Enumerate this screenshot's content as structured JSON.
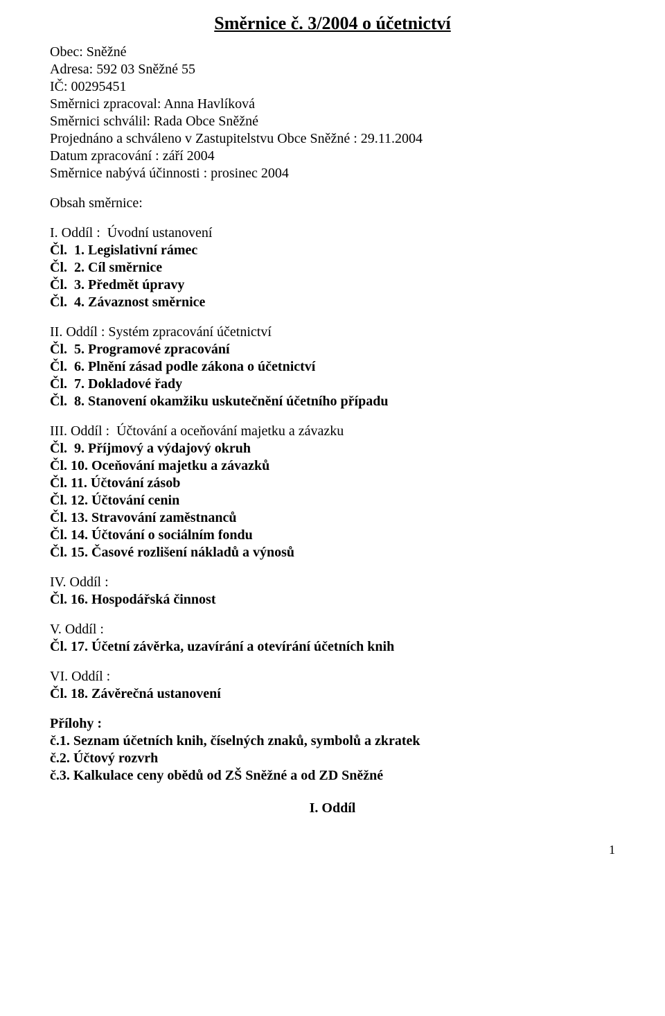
{
  "title": "Směrnice č. 3/2004 o účetnictví",
  "header": {
    "obec": "Obec: Sněžné",
    "adresa": "Adresa: 592 03 Sněžné 55",
    "ic": "IČ: 00295451",
    "zpracoval": "Směrnici zpracoval: Anna Havlíková",
    "schvalil": "Směrnici schválil: Rada Obce Sněžné",
    "projednano": "Projednáno a schváleno v Zastupitelstvu Obce Sněžné : 29.11.2004",
    "datum_zprac": "Datum zpracování : září 2004",
    "ucinnost": "Směrnice nabývá účinnosti : prosinec 2004"
  },
  "obsah_heading": "Obsah směrnice:",
  "section1": {
    "title": "I. Oddíl :  Úvodní ustanovení",
    "items": [
      "Čl.  1. Legislativní rámec",
      "Čl.  2. Cíl směrnice",
      "Čl.  3. Předmět úpravy",
      "Čl.  4. Závaznost směrnice"
    ]
  },
  "section2": {
    "title": "II. Oddíl : Systém zpracování účetnictví",
    "items": [
      "Čl.  5. Programové zpracování",
      "Čl.  6. Plnění zásad podle zákona o účetnictví",
      "Čl.  7. Dokladové řady",
      "Čl.  8. Stanovení okamžiku uskutečnění účetního případu"
    ]
  },
  "section3": {
    "title": "III. Oddíl :  Účtování a oceňování majetku a závazku",
    "items": [
      "Čl.  9. Příjmový a výdajový okruh",
      "Čl. 10. Oceňování majetku a závazků",
      "Čl. 11. Účtování zásob",
      "Čl. 12. Účtování cenin",
      "Čl. 13. Stravování zaměstnanců",
      "Čl. 14. Účtování o sociálním fondu",
      "Čl. 15. Časové rozlišení nákladů a výnosů"
    ]
  },
  "section4": {
    "title": "IV. Oddíl :",
    "items": [
      "Čl. 16. Hospodářská činnost"
    ]
  },
  "section5": {
    "title": "V. Oddíl :",
    "items": [
      "Čl. 17. Účetní závěrka, uzavírání a otevírání účetních knih"
    ]
  },
  "section6": {
    "title": "VI. Oddíl :",
    "items": [
      "Čl. 18. Závěrečná ustanovení"
    ]
  },
  "appendix": {
    "title": "Přílohy :",
    "items": [
      "č.1. Seznam účetních knih, číselných znaků, symbolů a zkratek",
      "č.2. Účtový rozvrh",
      "č.3. Kalkulace ceny obědů od ZŠ Sněžné a od ZD Sněžné"
    ]
  },
  "section_end": "I. Oddíl",
  "pagenum": "1"
}
